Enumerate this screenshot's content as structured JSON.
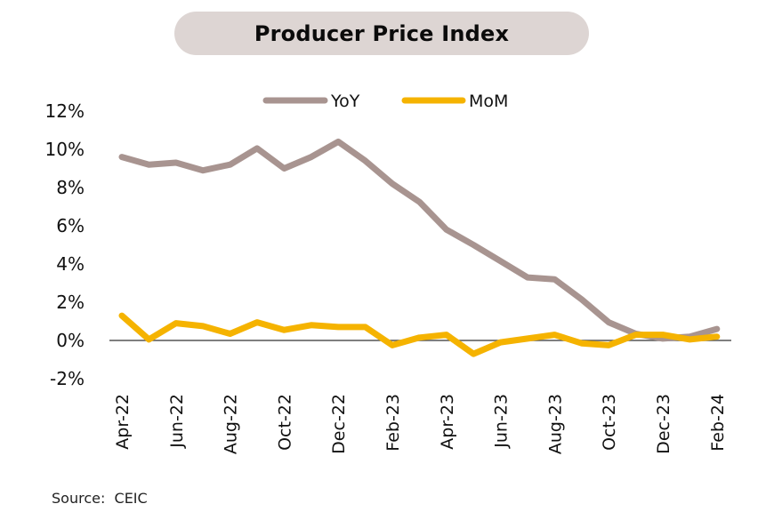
{
  "chart_data": {
    "type": "line",
    "title": "Producer Price Index",
    "xlabel": "",
    "ylabel": "",
    "x": [
      "Apr-22",
      "May-22",
      "Jun-22",
      "Jul-22",
      "Aug-22",
      "Sep-22",
      "Oct-22",
      "Nov-22",
      "Dec-22",
      "Jan-23",
      "Feb-23",
      "Mar-23",
      "Apr-23",
      "May-23",
      "Jun-23",
      "Jul-23",
      "Aug-23",
      "Sep-23",
      "Oct-23",
      "Nov-23",
      "Dec-23",
      "Jan-24",
      "Feb-24"
    ],
    "x_tick_labels": [
      "Apr-22",
      "Jun-22",
      "Aug-22",
      "Oct-22",
      "Dec-22",
      "Feb-23",
      "Apr-23",
      "Jun-23",
      "Aug-23",
      "Oct-23",
      "Dec-23",
      "Feb-24"
    ],
    "y_tick_labels": [
      "12%",
      "10%",
      "8%",
      "6%",
      "4%",
      "2%",
      "0%",
      "-2%"
    ],
    "y_ticks": [
      12,
      10,
      8,
      6,
      4,
      2,
      0,
      -2
    ],
    "ylim": [
      -2,
      12
    ],
    "grid": false,
    "zero_line": true,
    "legend": {
      "placement": "top-center"
    },
    "series": [
      {
        "name": "YoY",
        "color": "#a89490",
        "values": [
          9.6,
          9.2,
          9.3,
          8.9,
          9.2,
          10.05,
          9.0,
          9.6,
          10.4,
          9.4,
          8.2,
          7.25,
          5.8,
          5.0,
          4.15,
          3.3,
          3.2,
          2.15,
          0.95,
          0.35,
          0.1,
          0.2,
          0.6
        ]
      },
      {
        "name": "MoM",
        "color": "#f5b300",
        "values": [
          1.3,
          0.05,
          0.9,
          0.75,
          0.35,
          0.95,
          0.55,
          0.8,
          0.7,
          0.7,
          -0.25,
          0.15,
          0.3,
          -0.7,
          -0.1,
          0.1,
          0.3,
          -0.15,
          -0.25,
          0.3,
          0.3,
          0.05,
          0.2
        ]
      }
    ]
  },
  "header": {
    "title": "Producer Price Index"
  },
  "footer": {
    "source": "Source:  CEIC"
  },
  "colors": {
    "title_pill": "#ddd5d3",
    "zero_line": "#555555"
  }
}
